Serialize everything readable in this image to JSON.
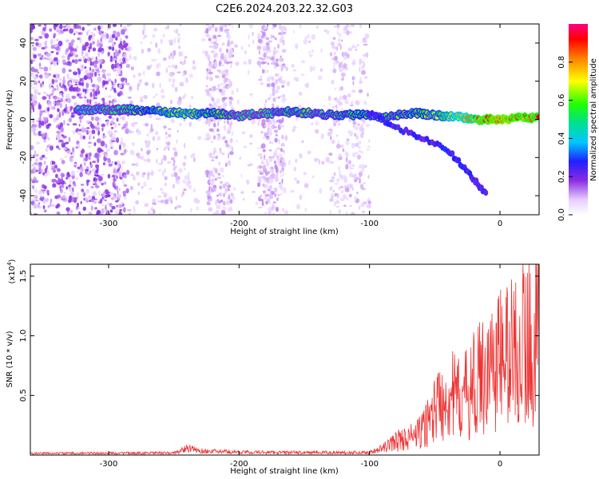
{
  "title": "C2E6.2024.203.22.32.G03",
  "chart_data": [
    {
      "type": "heatmap",
      "name": "spectrogram",
      "xlabel": "Height of straight line (km)",
      "ylabel": "Frequency (Hz)",
      "xlim": [
        -360,
        30
      ],
      "ylim": [
        -50,
        50
      ],
      "x_ticks": [
        -300,
        -200,
        -100,
        0
      ],
      "y_ticks": [
        -40,
        -20,
        0,
        20,
        40
      ],
      "colorbar": {
        "label": "Normalized spectral amplitude",
        "range": [
          0,
          1
        ],
        "ticks": [
          0.0,
          0.2,
          0.4,
          0.6,
          0.8
        ],
        "tick_labels": [
          "0.0",
          "0.2",
          "0.4",
          "0.6",
          "0.8"
        ]
      },
      "ridge": [
        {
          "x": -325,
          "y": 5,
          "a": 0.4
        },
        {
          "x": -280,
          "y": 5,
          "a": 0.55
        },
        {
          "x": -260,
          "y": 4,
          "a": 0.6
        },
        {
          "x": -240,
          "y": 3,
          "a": 0.62
        },
        {
          "x": -220,
          "y": 3,
          "a": 0.58
        },
        {
          "x": -200,
          "y": 2,
          "a": 0.5
        },
        {
          "x": -180,
          "y": 3,
          "a": 0.5
        },
        {
          "x": -160,
          "y": 4,
          "a": 0.55
        },
        {
          "x": -140,
          "y": 3,
          "a": 0.52
        },
        {
          "x": -120,
          "y": 2,
          "a": 0.55
        },
        {
          "x": -105,
          "y": 3,
          "a": 0.58
        },
        {
          "x": -90,
          "y": 1,
          "a": 0.55
        },
        {
          "x": -75,
          "y": 3,
          "a": 0.55
        },
        {
          "x": -60,
          "y": 3,
          "a": 0.58
        },
        {
          "x": -45,
          "y": 2,
          "a": 0.62
        },
        {
          "x": -30,
          "y": 1,
          "a": 0.7
        },
        {
          "x": -15,
          "y": 0,
          "a": 0.85
        },
        {
          "x": 0,
          "y": 0,
          "a": 0.92
        },
        {
          "x": 15,
          "y": 1,
          "a": 0.88
        },
        {
          "x": 30,
          "y": 1,
          "a": 0.85
        }
      ],
      "descending_branch": [
        {
          "x": -100,
          "y": 3
        },
        {
          "x": -80,
          "y": -4
        },
        {
          "x": -60,
          "y": -10
        },
        {
          "x": -40,
          "y": -16
        },
        {
          "x": -28,
          "y": -25
        },
        {
          "x": -18,
          "y": -33
        },
        {
          "x": -10,
          "y": -40
        }
      ]
    },
    {
      "type": "line",
      "name": "snr",
      "xlabel": "Height of straight line (km)",
      "ylabel": "SNR (10 * v/v)",
      "scale_label": "(x10",
      "scale_exponent": "4",
      "scale_suffix": ")",
      "xlim": [
        -360,
        30
      ],
      "ylim": [
        0,
        16000
      ],
      "x_ticks": [
        -300,
        -200,
        -100,
        0
      ],
      "y_ticks": [
        5000,
        10000,
        15000
      ],
      "y_tick_labels": [
        "0.5",
        "1.0",
        "1.5"
      ],
      "color": "#ee3333",
      "envelope": [
        {
          "x": -360,
          "y": 200
        },
        {
          "x": -250,
          "y": 250
        },
        {
          "x": -240,
          "y": 800
        },
        {
          "x": -230,
          "y": 500
        },
        {
          "x": -200,
          "y": 350
        },
        {
          "x": -150,
          "y": 300
        },
        {
          "x": -100,
          "y": 300
        },
        {
          "x": -90,
          "y": 800
        },
        {
          "x": -80,
          "y": 1800
        },
        {
          "x": -70,
          "y": 2200
        },
        {
          "x": -60,
          "y": 3000
        },
        {
          "x": -50,
          "y": 6000
        },
        {
          "x": -40,
          "y": 8000
        },
        {
          "x": -30,
          "y": 7000
        },
        {
          "x": -20,
          "y": 9000
        },
        {
          "x": -10,
          "y": 11000
        },
        {
          "x": 0,
          "y": 12500
        },
        {
          "x": 10,
          "y": 13500
        },
        {
          "x": 20,
          "y": 14500
        },
        {
          "x": 30,
          "y": 15500
        }
      ]
    }
  ]
}
